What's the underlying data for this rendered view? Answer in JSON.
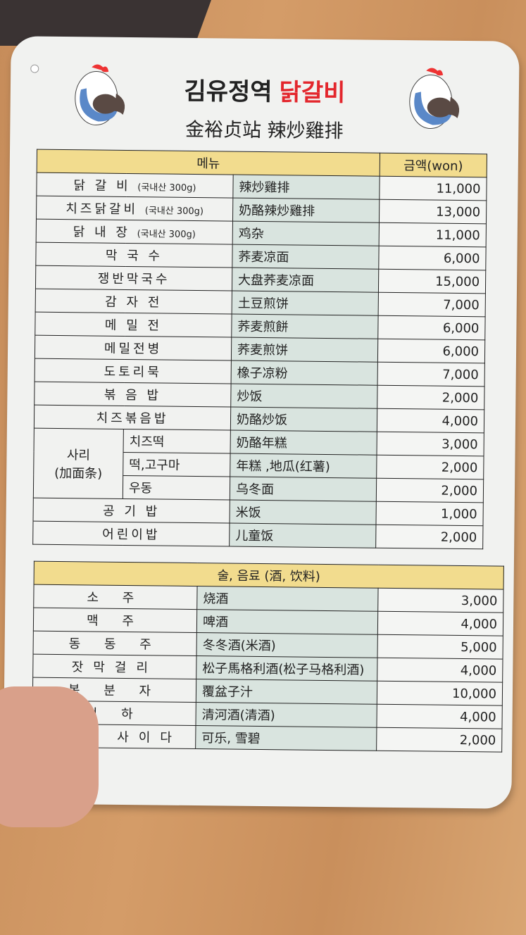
{
  "header": {
    "title_black": "김유정역",
    "title_red": "닭갈비",
    "subtitle": "金裕贞站 辣炒雞排"
  },
  "colors": {
    "title_red": "#e3262c",
    "header_yellow": "#f2dc8e",
    "chinese_column": "#d9e4df"
  },
  "icons": [
    "chicken-mascot-icon"
  ],
  "food": {
    "col_menu": "메뉴",
    "col_price": "금액(won)",
    "items": [
      {
        "ko": "닭 갈 비",
        "note": "(국내산 300g)",
        "zh": "辣炒雞排",
        "price": "11,000"
      },
      {
        "ko": "치즈닭갈비",
        "note": "(국내산 300g)",
        "zh": "奶酪辣炒雞排",
        "price": "13,000"
      },
      {
        "ko": "닭 내 장",
        "note": "(국내산 300g)",
        "zh": "鸡杂",
        "price": "11,000"
      },
      {
        "ko": "막 국 수",
        "zh": "荞麦凉面",
        "price": "6,000"
      },
      {
        "ko": "쟁반막국수",
        "zh": "大盘荞麦凉面",
        "price": "15,000"
      },
      {
        "ko": "감 자 전",
        "zh": "土豆煎饼",
        "price": "7,000"
      },
      {
        "ko": "메 밀 전",
        "zh": "荞麦煎餅",
        "price": "6,000"
      },
      {
        "ko": "메밀전병",
        "zh": "荞麦煎饼",
        "price": "6,000"
      },
      {
        "ko": "도토리묵",
        "zh": "橡子凉粉",
        "price": "7,000"
      },
      {
        "ko": "볶 음 밥",
        "zh": "炒饭",
        "price": "2,000"
      },
      {
        "ko": "치즈볶음밥",
        "zh": "奶酪炒饭",
        "price": "4,000"
      }
    ],
    "sari": {
      "label": "사리",
      "label_zh": "(加面条)",
      "items": [
        {
          "ko": "치즈떡",
          "zh": "奶酪年糕",
          "price": "3,000"
        },
        {
          "ko": "떡,고구마",
          "zh": "年糕 ,地瓜(红薯)",
          "price": "2,000"
        },
        {
          "ko": "우동",
          "zh": "乌冬面",
          "price": "2,000"
        }
      ]
    },
    "items_after": [
      {
        "ko": "공 기 밥",
        "zh": "米饭",
        "price": "1,000"
      },
      {
        "ko": "어린이밥",
        "zh": "儿童饭",
        "price": "2,000"
      }
    ]
  },
  "drinks": {
    "header": "술, 음료 (酒, 饮料)",
    "items": [
      {
        "ko": "소 주",
        "zh": "烧酒",
        "price": "3,000"
      },
      {
        "ko": "맥 주",
        "zh": "啤酒",
        "price": "4,000"
      },
      {
        "ko": "동 동 주",
        "zh": "冬冬酒(米酒)",
        "price": "5,000"
      },
      {
        "ko": "잣막걸리",
        "zh": "松子馬格利酒(松子马格利酒)",
        "price": "4,000"
      },
      {
        "ko": "복 분 자",
        "zh": "覆盆子汁",
        "price": "10,000"
      },
      {
        "ko": "청 하",
        "zh": "清河酒(清酒)",
        "price": "4,000"
      },
      {
        "ko": "콜라, 사이다",
        "zh": "可乐, 雪碧",
        "price": "2,000"
      }
    ]
  }
}
